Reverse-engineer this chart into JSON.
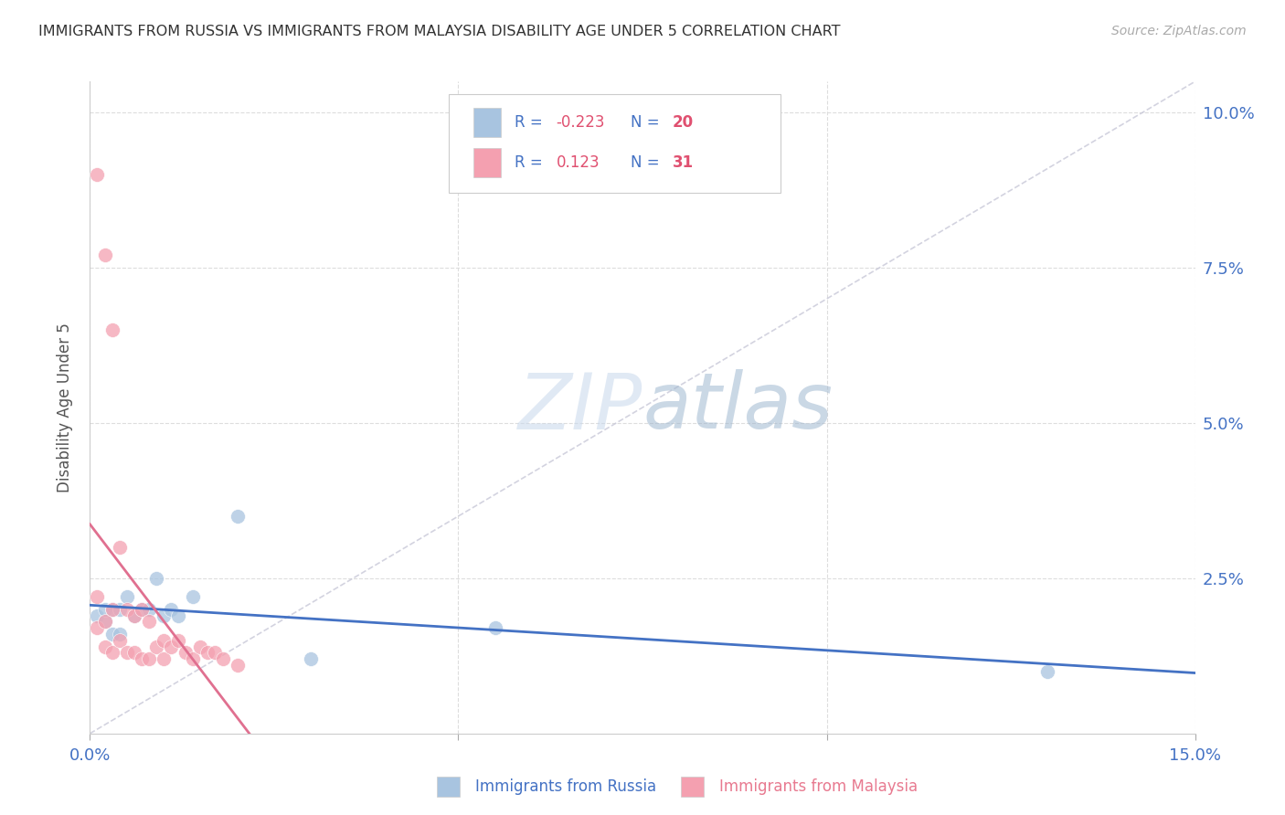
{
  "title": "IMMIGRANTS FROM RUSSIA VS IMMIGRANTS FROM MALAYSIA DISABILITY AGE UNDER 5 CORRELATION CHART",
  "source": "Source: ZipAtlas.com",
  "ylabel": "Disability Age Under 5",
  "watermark": "ZIPatlas",
  "russia_color": "#a8c4e0",
  "malaysia_color": "#f4a0b0",
  "russia_line_color": "#4472c4",
  "malaysia_line_color": "#e07090",
  "trendline_dashed_color": "#c8c8d8",
  "r_russia": -0.223,
  "n_russia": 20,
  "r_malaysia": 0.123,
  "n_malaysia": 31,
  "legend_r_color": "#4472c4",
  "legend_val_color": "#e05070",
  "xlim": [
    0.0,
    0.15
  ],
  "ylim": [
    0.0,
    0.105
  ],
  "xtick_labels_show": [
    "0.0%",
    "15.0%"
  ],
  "ytick_labels_show": [
    "2.5%",
    "5.0%",
    "7.5%",
    "10.0%"
  ]
}
